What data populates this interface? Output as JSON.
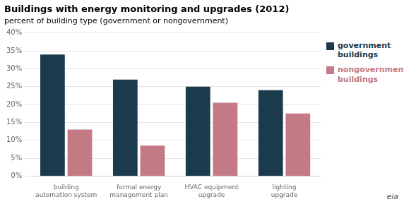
{
  "chart_data": {
    "type": "bar",
    "title": "Buildings with energy monitoring and upgrades (2012)",
    "subtitle": "percent of building type (government or nongovernment)",
    "categories": [
      "building\nautomation system",
      "formal energy\nmanagement plan",
      "HVAC equipment\nupgrade",
      "lighting\nupgrade"
    ],
    "series": [
      {
        "name": "government\nbuildings",
        "color": "#1b3a4b",
        "values": [
          0.34,
          0.27,
          0.25,
          0.24
        ]
      },
      {
        "name": "nongovernment\nbuildings",
        "color": "#c47a85",
        "values": [
          0.13,
          0.085,
          0.205,
          0.175
        ]
      }
    ],
    "ylim": [
      0,
      0.4
    ],
    "yticks": [
      {
        "value": 0,
        "label": "0%"
      },
      {
        "value": 0.05,
        "label": "5%"
      },
      {
        "value": 0.1,
        "label": "10%"
      },
      {
        "value": 0.15,
        "label": "15%"
      },
      {
        "value": 0.2,
        "label": "20%"
      },
      {
        "value": 0.25,
        "label": "25%"
      },
      {
        "value": 0.3,
        "label": "30%"
      },
      {
        "value": 0.35,
        "label": "35%"
      },
      {
        "value": 0.4,
        "label": "40%"
      }
    ],
    "grid": true,
    "legend": "right",
    "annotations": [
      "eia"
    ]
  }
}
